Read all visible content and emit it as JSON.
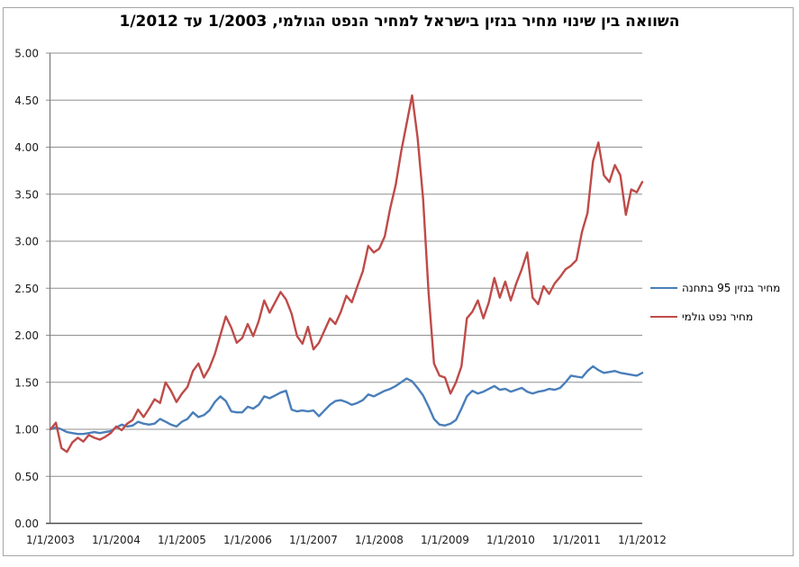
{
  "chart_data": {
    "type": "line",
    "title": "השוואה בין שינוי מחיר בנזין בישראל  למחיר הנפט הגולמי, 1/2003 עד 1/2012",
    "xlabel": "",
    "ylabel": "",
    "ylim": [
      0,
      5
    ],
    "ytick_step": 0.5,
    "y_tick_labels": [
      "0.00",
      "0.50",
      "1.00",
      "1.50",
      "2.00",
      "2.50",
      "3.00",
      "3.50",
      "4.00",
      "4.50",
      "5.00"
    ],
    "x_tick_labels": [
      "1/1/2003",
      "1/1/2004",
      "1/1/2005",
      "1/1/2006",
      "1/1/2007",
      "1/1/2008",
      "1/1/2009",
      "1/1/2010",
      "1/1/2011",
      "1/1/2012"
    ],
    "x_range_months": {
      "start": "1/2003",
      "end": "1/2012",
      "count": 109
    },
    "grid": true,
    "legend_position": "right",
    "series": [
      {
        "name": "מחיר בנזין 95 בתחנה",
        "color": "#4A7EBA",
        "values": [
          1.0,
          1.02,
          1.0,
          0.97,
          0.96,
          0.95,
          0.95,
          0.96,
          0.97,
          0.96,
          0.97,
          0.98,
          1.02,
          1.05,
          1.03,
          1.04,
          1.08,
          1.06,
          1.05,
          1.06,
          1.11,
          1.08,
          1.05,
          1.03,
          1.08,
          1.11,
          1.18,
          1.13,
          1.15,
          1.2,
          1.29,
          1.35,
          1.3,
          1.19,
          1.18,
          1.18,
          1.24,
          1.22,
          1.26,
          1.35,
          1.33,
          1.36,
          1.39,
          1.41,
          1.21,
          1.19,
          1.2,
          1.19,
          1.2,
          1.14,
          1.2,
          1.26,
          1.3,
          1.31,
          1.29,
          1.26,
          1.28,
          1.31,
          1.37,
          1.35,
          1.38,
          1.41,
          1.43,
          1.46,
          1.5,
          1.54,
          1.51,
          1.44,
          1.36,
          1.24,
          1.11,
          1.05,
          1.04,
          1.06,
          1.1,
          1.22,
          1.35,
          1.41,
          1.38,
          1.4,
          1.43,
          1.46,
          1.42,
          1.43,
          1.4,
          1.42,
          1.44,
          1.4,
          1.38,
          1.4,
          1.41,
          1.43,
          1.42,
          1.44,
          1.5,
          1.57,
          1.56,
          1.55,
          1.62,
          1.67,
          1.63,
          1.6,
          1.61,
          1.62,
          1.6,
          1.59,
          1.58,
          1.57,
          1.6
        ]
      },
      {
        "name": "מחיר נפט גולמי",
        "color": "#BE4B48",
        "values": [
          1.0,
          1.07,
          0.8,
          0.76,
          0.86,
          0.91,
          0.87,
          0.94,
          0.91,
          0.89,
          0.92,
          0.96,
          1.03,
          0.99,
          1.06,
          1.1,
          1.21,
          1.13,
          1.22,
          1.32,
          1.28,
          1.5,
          1.41,
          1.29,
          1.38,
          1.45,
          1.62,
          1.7,
          1.55,
          1.65,
          1.8,
          2.0,
          2.2,
          2.08,
          1.92,
          1.97,
          2.12,
          1.99,
          2.15,
          2.37,
          2.24,
          2.35,
          2.46,
          2.38,
          2.23,
          1.99,
          1.91,
          2.09,
          1.85,
          1.92,
          2.05,
          2.18,
          2.12,
          2.25,
          2.42,
          2.35,
          2.52,
          2.68,
          2.95,
          2.88,
          2.92,
          3.05,
          3.35,
          3.6,
          3.95,
          4.25,
          4.55,
          4.1,
          3.45,
          2.45,
          1.7,
          1.57,
          1.55,
          1.38,
          1.5,
          1.67,
          2.18,
          2.25,
          2.37,
          2.18,
          2.35,
          2.61,
          2.4,
          2.57,
          2.37,
          2.55,
          2.7,
          2.88,
          2.4,
          2.33,
          2.52,
          2.44,
          2.55,
          2.62,
          2.7,
          2.74,
          2.8,
          3.1,
          3.3,
          3.85,
          4.05,
          3.7,
          3.63,
          3.81,
          3.7,
          3.28,
          3.55,
          3.52,
          3.63
        ]
      }
    ],
    "axis_colors": {
      "gridline": "#8f8f8f",
      "y_axis": "#7a7a7a",
      "x_axis": "#4d4d4d"
    }
  }
}
